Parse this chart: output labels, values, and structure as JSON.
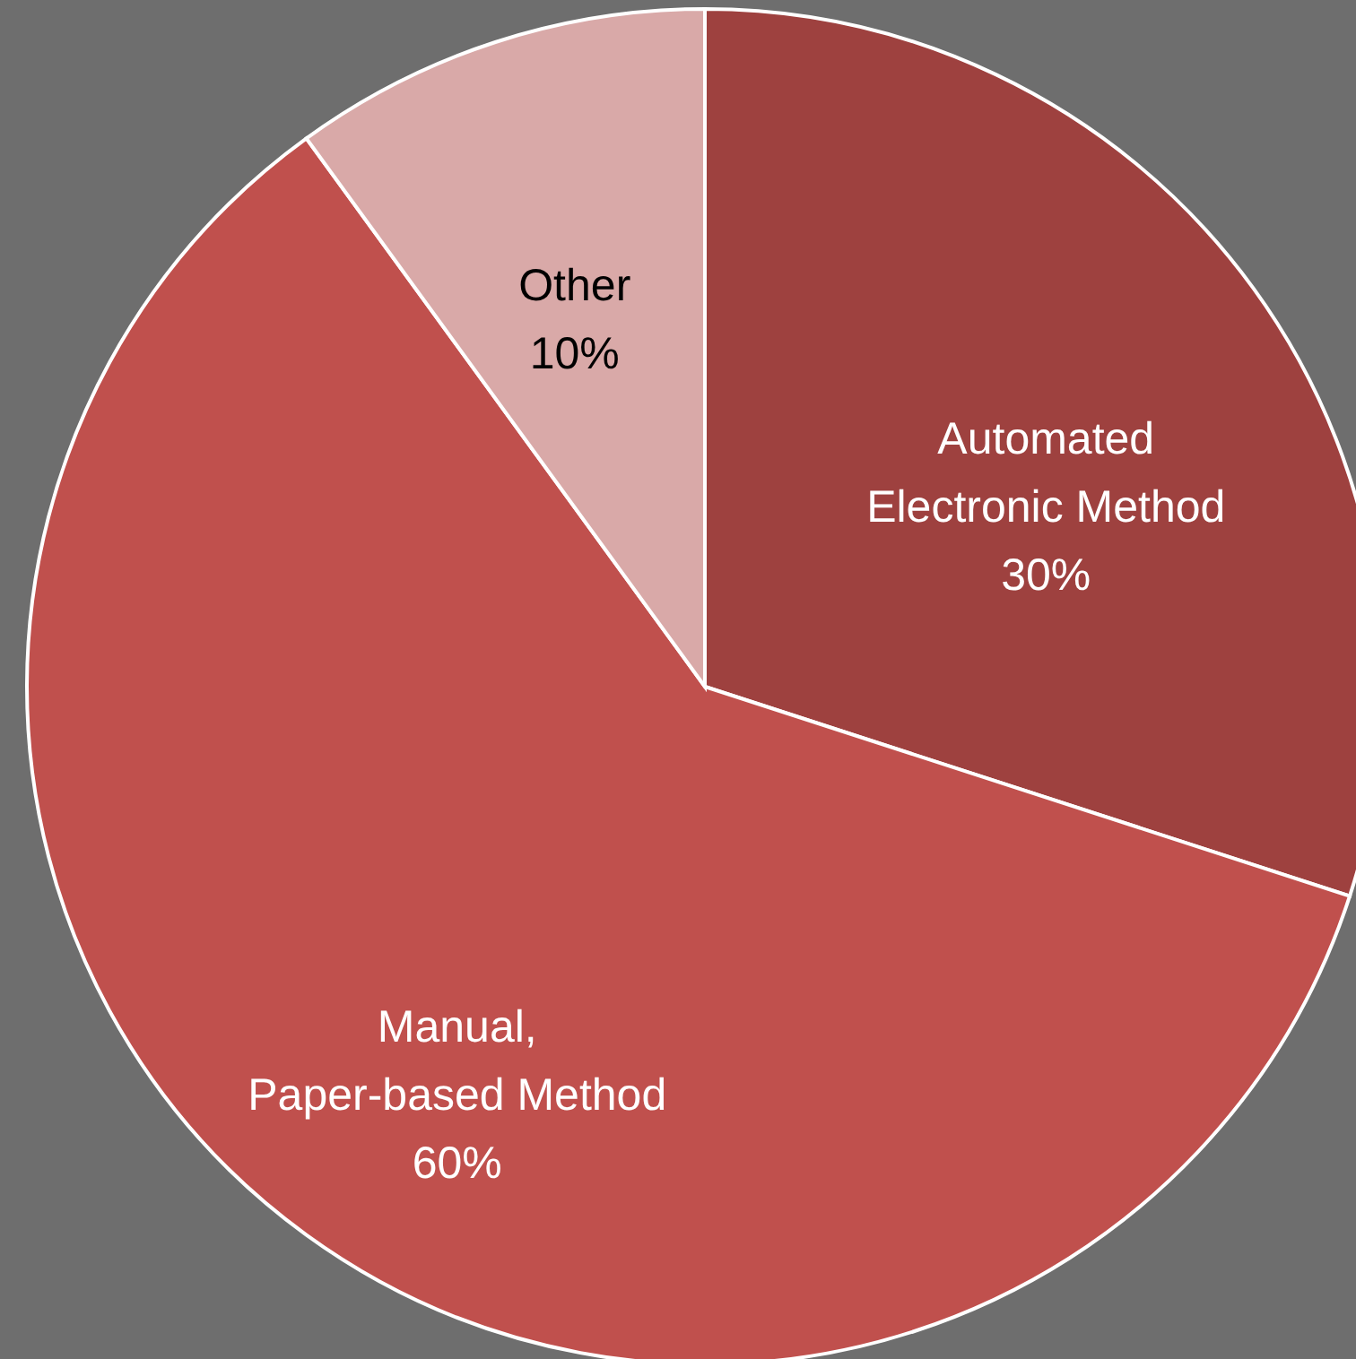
{
  "chart_data": {
    "type": "pie",
    "categories": [
      "Automated Electronic Method",
      "Manual, Paper-based Method",
      "Other"
    ],
    "values": [
      30,
      60,
      10
    ],
    "value_labels": [
      "30%",
      "60%",
      "10%"
    ],
    "colors": [
      "#9e413f",
      "#c0504d",
      "#d9a9a8"
    ]
  }
}
